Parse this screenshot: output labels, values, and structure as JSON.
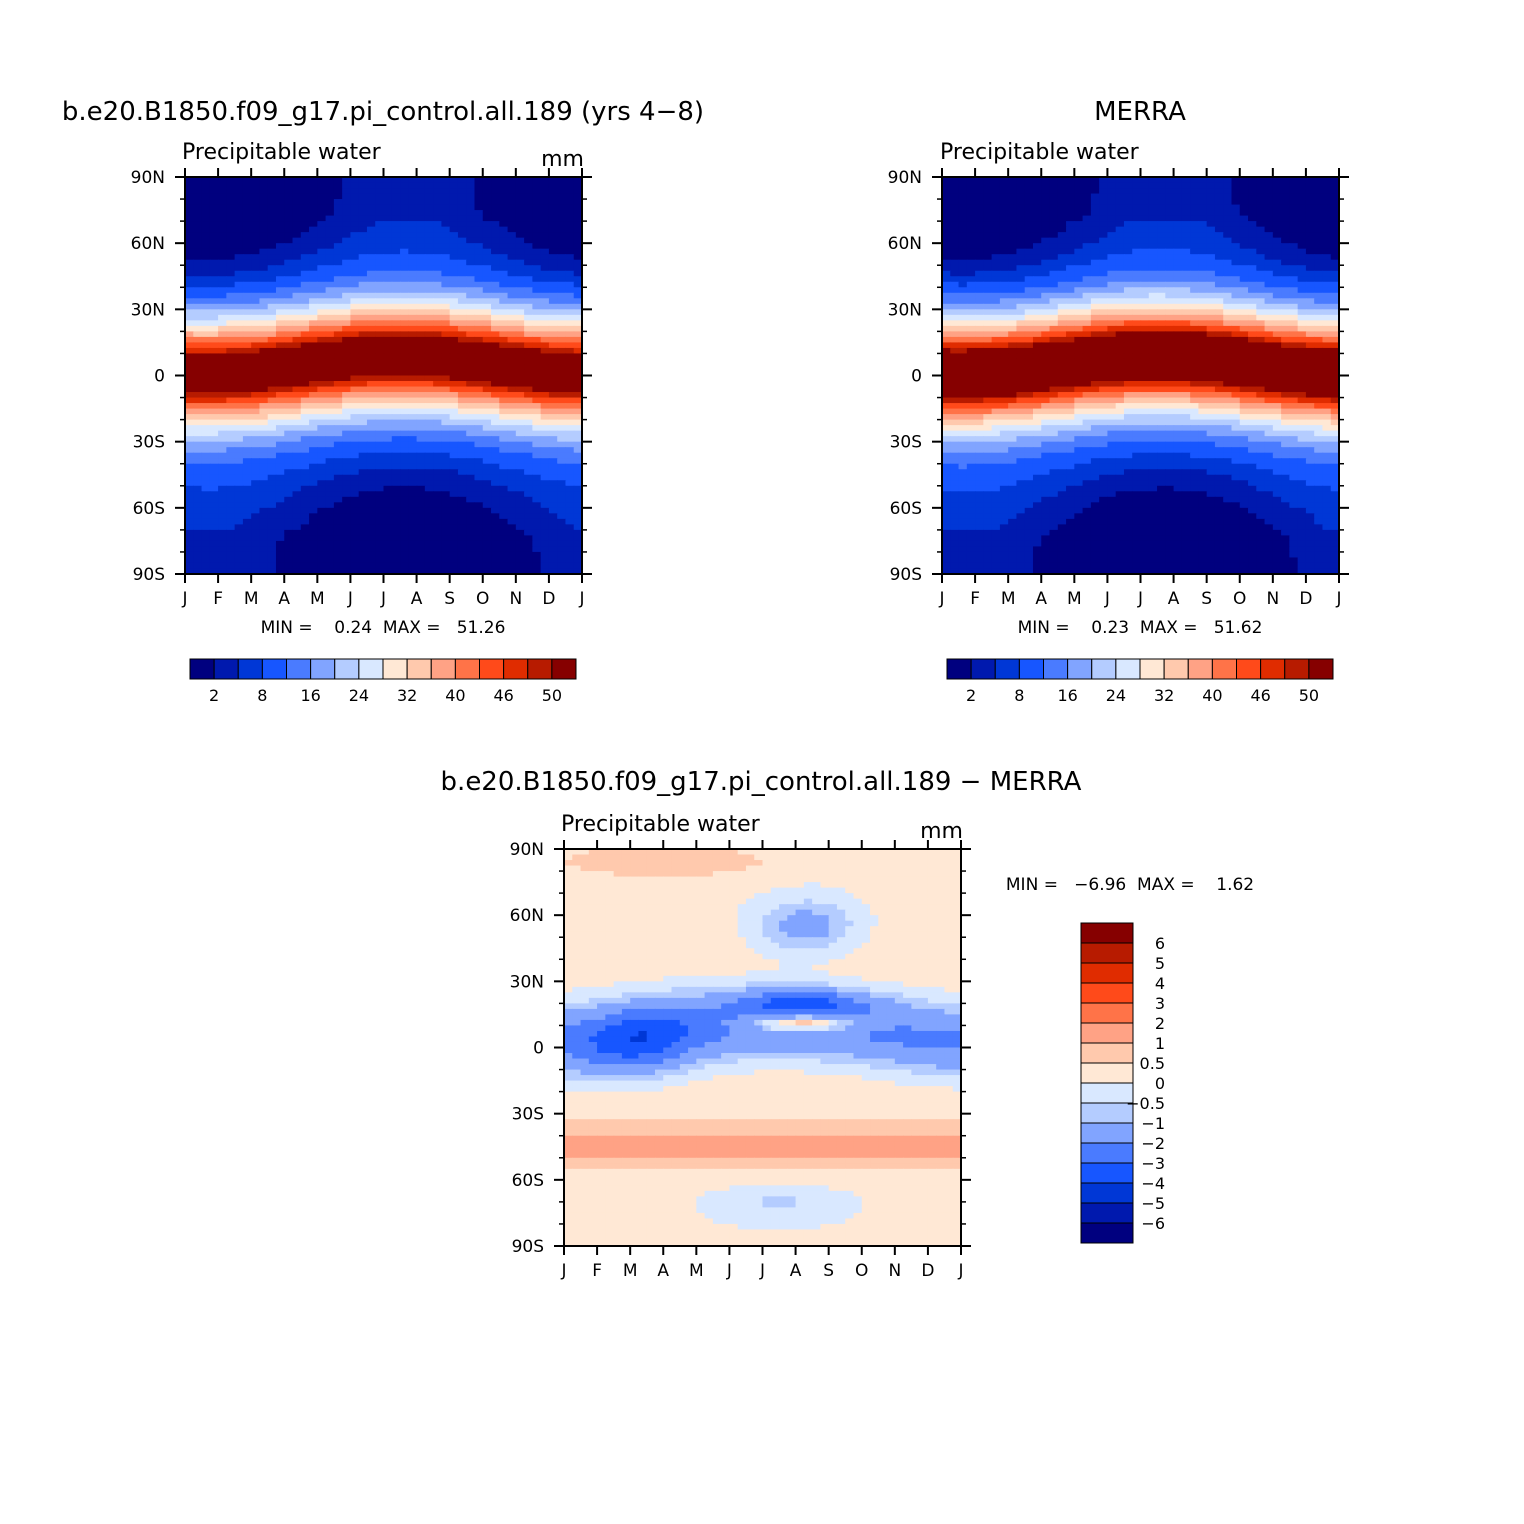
{
  "colors": {
    "abs_scale": [
      "#00007f",
      "#0019ae",
      "#0037d6",
      "#1756ff",
      "#4a7bff",
      "#81a4ff",
      "#b4ccff",
      "#d9e8ff",
      "#ffe8d5",
      "#ffc9ad",
      "#ffa285",
      "#ff7348",
      "#ff4a1a",
      "#e02c00",
      "#b71b00",
      "#860000"
    ],
    "diff_scale": [
      "#00007f",
      "#0019ae",
      "#0037d6",
      "#1756ff",
      "#4a7bff",
      "#81a4ff",
      "#b4ccff",
      "#d9e8ff",
      "#ffe8d5",
      "#ffc9ad",
      "#ffa285",
      "#ff7348",
      "#ff4a1a",
      "#e02c00",
      "#b71b00",
      "#860000"
    ]
  },
  "chart_data": [
    {
      "type": "heatmap",
      "title": "b.e20.B1850.f09_g17.pi_control.all.189 (yrs 4−8)",
      "subtitle": "Precipitable water",
      "units": "mm",
      "x_ticks": [
        "J",
        "F",
        "M",
        "A",
        "M",
        "J",
        "J",
        "A",
        "S",
        "O",
        "N",
        "D",
        "J"
      ],
      "y_ticks": [
        "90N",
        "60N",
        "30N",
        "0",
        "30S",
        "60S",
        "90S"
      ],
      "stats": "MIN =    0.24  MAX =   51.26",
      "min": 0.24,
      "max": 51.26,
      "levels": [
        2,
        5,
        8,
        12,
        16,
        20,
        24,
        28,
        32,
        36,
        40,
        43,
        46,
        48,
        50
      ],
      "colorbar_labels": [
        "2",
        "8",
        "16",
        "24",
        "32",
        "40",
        "46",
        "50"
      ]
    },
    {
      "type": "heatmap",
      "title": "MERRA",
      "subtitle": "Precipitable water",
      "x_ticks": [
        "J",
        "F",
        "M",
        "A",
        "M",
        "J",
        "J",
        "A",
        "S",
        "O",
        "N",
        "D",
        "J"
      ],
      "y_ticks": [
        "90N",
        "60N",
        "30N",
        "0",
        "30S",
        "60S",
        "90S"
      ],
      "stats": "MIN =    0.23  MAX =   51.62",
      "min": 0.23,
      "max": 51.62,
      "levels": [
        2,
        5,
        8,
        12,
        16,
        20,
        24,
        28,
        32,
        36,
        40,
        43,
        46,
        48,
        50
      ],
      "colorbar_labels": [
        "2",
        "8",
        "16",
        "24",
        "32",
        "40",
        "46",
        "50"
      ]
    },
    {
      "type": "heatmap",
      "title": "b.e20.B1850.f09_g17.pi_control.all.189 − MERRA",
      "subtitle": "Precipitable water",
      "units": "mm",
      "x_ticks": [
        "J",
        "F",
        "M",
        "A",
        "M",
        "J",
        "J",
        "A",
        "S",
        "O",
        "N",
        "D",
        "J"
      ],
      "y_ticks": [
        "90N",
        "60N",
        "30N",
        "0",
        "30S",
        "60S",
        "90S"
      ],
      "stats": "MIN =   −6.96  MAX =    1.62",
      "min": -6.96,
      "max": 1.62,
      "levels": [
        -6,
        -5,
        -4,
        -3,
        -2,
        -1,
        -0.5,
        0,
        0.5,
        1,
        2,
        3,
        4,
        5,
        6
      ],
      "colorbar_labels": [
        "6",
        "5",
        "4",
        "3",
        "2",
        "1",
        "0.5",
        "0",
        "−0.5",
        "−1",
        "−2",
        "−3",
        "−4",
        "−5",
        "−6"
      ]
    }
  ]
}
